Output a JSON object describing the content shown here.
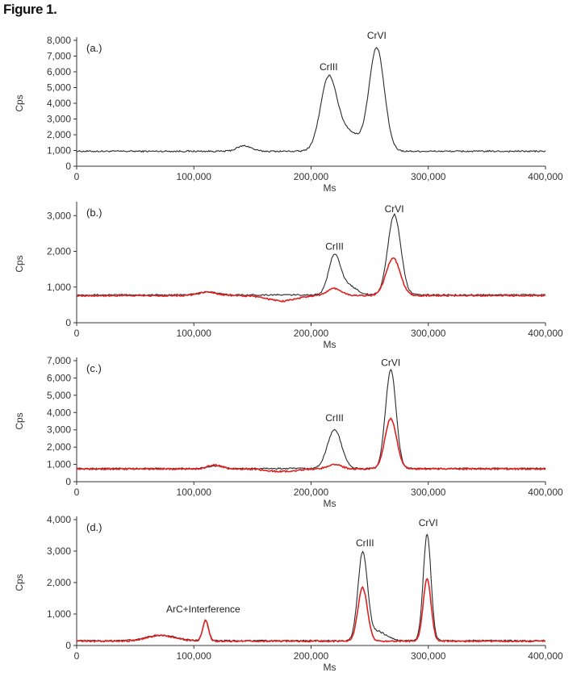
{
  "figure_title": "Figure 1.",
  "colors": {
    "black_series": "#2b2b2b",
    "red_series": "#e02020",
    "axis": "#333333"
  },
  "chart_data": [
    {
      "type": "line",
      "panel_label": "(a.)",
      "xlabel": "Ms",
      "ylabel": "Cps",
      "xlim": [
        0,
        400000
      ],
      "ylim": [
        0,
        8000
      ],
      "x_ticks": [
        0,
        100000,
        200000,
        300000,
        400000
      ],
      "x_tick_labels": [
        "0",
        "100,000",
        "200,000",
        "300,000",
        "400,000"
      ],
      "y_ticks": [
        0,
        1000,
        2000,
        3000,
        4000,
        5000,
        6000,
        7000,
        8000
      ],
      "y_tick_labels": [
        "0",
        "1,000",
        "2,000",
        "3,000",
        "4,000",
        "5,000",
        "6,000",
        "7,000",
        "8,000"
      ],
      "annotations": [
        {
          "text": "CrIII",
          "x": 215000,
          "y": 6100
        },
        {
          "text": "CrVI",
          "x": 256000,
          "y": 8100
        }
      ],
      "series": [
        {
          "color": "#2b2b2b",
          "baseline": 950,
          "peaks": [
            {
              "x": 143000,
              "h": 350,
              "w": 6000
            },
            {
              "x": 215000,
              "h": 4600,
              "w": 7000
            },
            {
              "x": 232000,
              "h": 1200,
              "w": 9000
            },
            {
              "x": 256000,
              "h": 6550,
              "w": 6500
            }
          ]
        }
      ]
    },
    {
      "type": "line",
      "panel_label": "(b.)",
      "xlabel": "Ms",
      "ylabel": "Cps",
      "xlim": [
        0,
        400000
      ],
      "ylim": [
        0,
        3300
      ],
      "x_ticks": [
        0,
        100000,
        200000,
        300000,
        400000
      ],
      "x_tick_labels": [
        "0",
        "100,000",
        "200,000",
        "300,000",
        "400,000"
      ],
      "y_ticks": [
        0,
        1000,
        2000,
        3000
      ],
      "y_tick_labels": [
        "0",
        "1,000",
        "2,000",
        "3,000"
      ],
      "annotations": [
        {
          "text": "CrIII",
          "x": 220000,
          "y": 2050
        },
        {
          "text": "CrVI",
          "x": 271000,
          "y": 3100
        }
      ],
      "series": [
        {
          "color": "#2b2b2b",
          "baseline": 780,
          "peaks": [
            {
              "x": 112000,
              "h": 80,
              "w": 8000
            },
            {
              "x": 220000,
              "h": 1100,
              "w": 5000
            },
            {
              "x": 232000,
              "h": 250,
              "w": 7000
            },
            {
              "x": 271000,
              "h": 2250,
              "w": 5500
            }
          ]
        },
        {
          "color": "#e02020",
          "baseline": 760,
          "peaks": [
            {
              "x": 112000,
              "h": 100,
              "w": 8000
            },
            {
              "x": 175000,
              "h": -150,
              "w": 12000
            },
            {
              "x": 220000,
              "h": 200,
              "w": 6000
            },
            {
              "x": 270000,
              "h": 1050,
              "w": 6000
            }
          ]
        }
      ]
    },
    {
      "type": "line",
      "panel_label": "(c.)",
      "xlabel": "Ms",
      "ylabel": "Cps",
      "xlim": [
        0,
        400000
      ],
      "ylim": [
        0,
        7000
      ],
      "x_ticks": [
        0,
        100000,
        200000,
        300000,
        400000
      ],
      "x_tick_labels": [
        "0",
        "100,000",
        "200,000",
        "300,000",
        "400,000"
      ],
      "y_ticks": [
        0,
        1000,
        2000,
        3000,
        4000,
        5000,
        6000,
        7000
      ],
      "y_tick_labels": [
        "0",
        "1,000",
        "2,000",
        "3,000",
        "4,000",
        "5,000",
        "6,000",
        "7,000"
      ],
      "annotations": [
        {
          "text": "CrIII",
          "x": 220000,
          "y": 3500
        },
        {
          "text": "CrVI",
          "x": 268000,
          "y": 6700
        }
      ],
      "series": [
        {
          "color": "#2b2b2b",
          "baseline": 760,
          "peaks": [
            {
              "x": 118000,
              "h": 150,
              "w": 6000
            },
            {
              "x": 220000,
              "h": 2250,
              "w": 6000
            },
            {
              "x": 268000,
              "h": 5700,
              "w": 4500
            }
          ]
        },
        {
          "color": "#e02020",
          "baseline": 740,
          "peaks": [
            {
              "x": 118000,
              "h": 220,
              "w": 6000
            },
            {
              "x": 175000,
              "h": -150,
              "w": 12000
            },
            {
              "x": 220000,
              "h": 250,
              "w": 6000
            },
            {
              "x": 268000,
              "h": 2900,
              "w": 5000
            }
          ]
        }
      ]
    },
    {
      "type": "line",
      "panel_label": "(d.)",
      "xlabel": "Ms",
      "ylabel": "Cps",
      "xlim": [
        0,
        400000
      ],
      "ylim": [
        0,
        4000
      ],
      "x_ticks": [
        0,
        100000,
        200000,
        300000,
        400000
      ],
      "x_tick_labels": [
        "0",
        "100,000",
        "200,000",
        "300,000",
        "400,000"
      ],
      "y_ticks": [
        0,
        1000,
        2000,
        3000,
        4000
      ],
      "y_tick_labels": [
        "0",
        "1,000",
        "2,000",
        "3,000",
        "4,000"
      ],
      "annotations": [
        {
          "text": "ArC+Interference",
          "x": 108000,
          "y": 1050
        },
        {
          "text": "CrIII",
          "x": 246000,
          "y": 3150
        },
        {
          "text": "CrVI",
          "x": 300000,
          "y": 3800
        }
      ],
      "series": [
        {
          "color": "#2b2b2b",
          "baseline": 150,
          "peaks": [
            {
              "x": 72000,
              "h": 180,
              "w": 12000
            },
            {
              "x": 110000,
              "h": 650,
              "w": 2500
            },
            {
              "x": 244000,
              "h": 2750,
              "w": 4000
            },
            {
              "x": 256000,
              "h": 300,
              "w": 8000
            },
            {
              "x": 299000,
              "h": 3400,
              "w": 3300
            }
          ]
        },
        {
          "color": "#e02020",
          "baseline": 140,
          "peaks": [
            {
              "x": 72000,
              "h": 180,
              "w": 12000
            },
            {
              "x": 110000,
              "h": 650,
              "w": 2500
            },
            {
              "x": 244000,
              "h": 1700,
              "w": 4000
            },
            {
              "x": 299000,
              "h": 2000,
              "w": 3300
            }
          ]
        }
      ]
    }
  ]
}
